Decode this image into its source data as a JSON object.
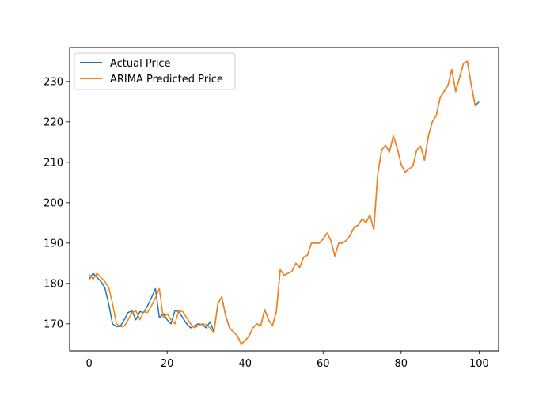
{
  "chart_data": {
    "type": "line",
    "title": "",
    "xlabel": "",
    "ylabel": "",
    "xlim": [
      -5,
      105
    ],
    "ylim": [
      163.3,
      238.4
    ],
    "x_ticks": [
      0,
      20,
      40,
      60,
      80,
      100
    ],
    "y_ticks": [
      170,
      180,
      190,
      200,
      210,
      220,
      230
    ],
    "grid": false,
    "legend_position": "upper-left",
    "series": [
      {
        "name": "Actual Price",
        "color": "#1f77b4",
        "values": [
          181,
          182.5,
          181.5,
          180.5,
          179,
          175,
          170,
          169.3,
          169.4,
          171,
          172.8,
          173.2,
          171,
          173,
          172.8,
          174.5,
          176.5,
          178.7,
          171.5,
          172.5,
          171,
          170,
          173.3,
          173,
          171.5,
          170,
          169,
          169.5,
          170,
          169.8,
          169,
          170.5,
          168,
          175,
          176.7,
          172,
          169,
          168,
          167,
          165,
          165.8,
          167,
          169,
          170,
          169.5,
          173.5,
          171,
          169.5,
          173,
          183.4,
          182,
          182.5,
          183,
          185,
          184,
          186.5,
          187,
          190,
          190,
          190,
          191,
          192.5,
          190.6,
          186.8,
          190,
          190,
          190.7,
          192,
          194,
          194.4,
          196,
          195,
          197,
          193.3,
          207,
          213,
          214.2,
          212.5,
          216.5,
          213.5,
          209.5,
          207.5,
          208.3,
          209,
          213,
          214,
          210.5,
          216.5,
          220,
          221.5,
          226,
          227.5,
          229,
          233,
          227.5,
          231,
          234.5,
          235,
          229,
          224,
          225
        ]
      },
      {
        "name": "ARIMA Predicted Price",
        "color": "#ff7f0e",
        "values": [
          182.2,
          181,
          182.5,
          181.5,
          180.5,
          179,
          175,
          170,
          169.3,
          169.4,
          171,
          172.8,
          173.2,
          171,
          173,
          172.8,
          174.5,
          176.5,
          178.7,
          171.5,
          172.5,
          171,
          170,
          173.3,
          173,
          171.5,
          170,
          169,
          169.5,
          170,
          169.8,
          169,
          167.8,
          175,
          176.7,
          172,
          169,
          168,
          167,
          165,
          165.8,
          167,
          169,
          170,
          169.5,
          173.5,
          171,
          169.5,
          173,
          183.4,
          182,
          182.5,
          183,
          185,
          184,
          186.5,
          187,
          190,
          190,
          190,
          191,
          192.5,
          190.6,
          186.8,
          190,
          190,
          190.7,
          192,
          194,
          194.4,
          196,
          195,
          197,
          193.3,
          207,
          213,
          214.2,
          212.5,
          216.5,
          213.5,
          209.5,
          207.5,
          208.3,
          209,
          213,
          214,
          210.5,
          216.5,
          220,
          221.5,
          226,
          227.5,
          229,
          233,
          227.5,
          231,
          234.5,
          235,
          229,
          224
        ]
      }
    ]
  }
}
